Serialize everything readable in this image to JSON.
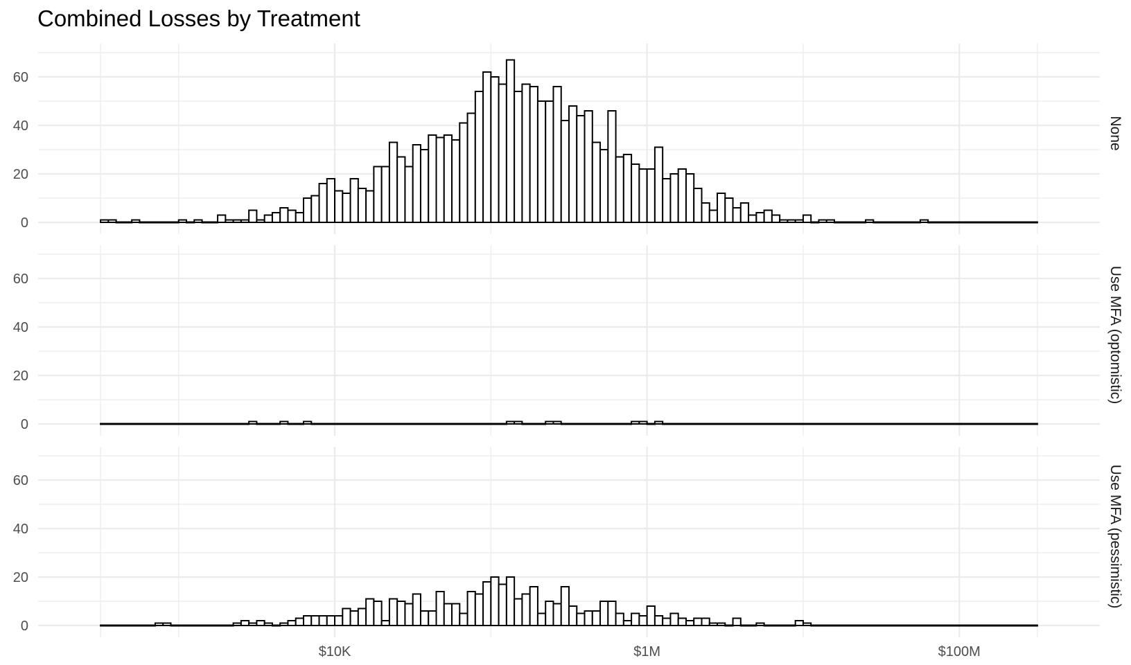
{
  "chart_data": {
    "type": "histogram",
    "title": "Combined Losses by Treatment",
    "xlabel": "",
    "ylabel": "",
    "x_scale": "log10",
    "x_bins_log10": {
      "start": 2.5,
      "width": 0.05,
      "count": 120
    },
    "x_ticks": [
      {
        "value": 10000,
        "label": "$10K"
      },
      {
        "value": 1000000,
        "label": "$1M"
      },
      {
        "value": 100000000,
        "label": "$100M"
      }
    ],
    "y_ticks": [
      "0",
      "20",
      "40",
      "60"
    ],
    "ylim": [
      0,
      70
    ],
    "grid": true,
    "facets": [
      {
        "label": "None",
        "counts": [
          1,
          1,
          0,
          0,
          1,
          0,
          0,
          0,
          0,
          0,
          1,
          0,
          1,
          0,
          0,
          3,
          1,
          1,
          1,
          5,
          1,
          3,
          4,
          6,
          5,
          4,
          10,
          11,
          16,
          18,
          13,
          12,
          18,
          14,
          13,
          23,
          23,
          33,
          27,
          23,
          32,
          30,
          36,
          35,
          36,
          34,
          41,
          45,
          54,
          62,
          60,
          57,
          67,
          54,
          57,
          56,
          50,
          50,
          56,
          42,
          48,
          44,
          46,
          33,
          30,
          46,
          27,
          28,
          24,
          22,
          22,
          31,
          18,
          20,
          22,
          20,
          14,
          8,
          5,
          12,
          10,
          6,
          8,
          3,
          4,
          5,
          3,
          1,
          1,
          1,
          3,
          0,
          1,
          1,
          0,
          0,
          0,
          0,
          1,
          0,
          0,
          0,
          0,
          0,
          0,
          1,
          0,
          0,
          0,
          0,
          0,
          0,
          0,
          0,
          0,
          0,
          0,
          0,
          0,
          0
        ]
      },
      {
        "label": "Use MFA (optomistic)",
        "counts": [
          0,
          0,
          0,
          0,
          0,
          0,
          0,
          0,
          0,
          0,
          0,
          0,
          0,
          0,
          0,
          0,
          0,
          0,
          0,
          1,
          0,
          0,
          0,
          1,
          0,
          0,
          1,
          0,
          0,
          0,
          0,
          0,
          0,
          0,
          0,
          0,
          0,
          0,
          0,
          0,
          0,
          0,
          0,
          0,
          0,
          0,
          0,
          0,
          0,
          0,
          0,
          0,
          1,
          1,
          0,
          0,
          0,
          1,
          1,
          0,
          0,
          0,
          0,
          0,
          0,
          0,
          0,
          0,
          1,
          1,
          0,
          1,
          0,
          0,
          0,
          0,
          0,
          0,
          0,
          0,
          0,
          0,
          0,
          0,
          0,
          0,
          0,
          0,
          0,
          0,
          0,
          0,
          0,
          0,
          0,
          0,
          0,
          0,
          0,
          0,
          0,
          0,
          0,
          0,
          0,
          0,
          0,
          0,
          0,
          0,
          0,
          0,
          0,
          0,
          0,
          0,
          0,
          0,
          0,
          0
        ]
      },
      {
        "label": "Use MFA (pessimistic)",
        "counts": [
          0,
          0,
          0,
          0,
          0,
          0,
          0,
          1,
          1,
          0,
          0,
          0,
          0,
          0,
          0,
          0,
          0,
          1,
          2,
          1,
          2,
          1,
          0,
          1,
          2,
          3,
          4,
          4,
          4,
          4,
          4,
          7,
          6,
          7,
          11,
          10,
          2,
          11,
          10,
          9,
          13,
          6,
          6,
          14,
          9,
          9,
          5,
          14,
          13,
          18,
          20,
          17,
          20,
          11,
          13,
          16,
          5,
          10,
          9,
          16,
          8,
          5,
          6,
          6,
          10,
          10,
          5,
          2,
          5,
          4,
          8,
          4,
          3,
          5,
          3,
          2,
          3,
          3,
          1,
          1,
          0,
          3,
          0,
          0,
          1,
          0,
          0,
          0,
          0,
          2,
          1,
          0,
          0,
          0,
          0,
          0,
          0,
          0,
          0,
          0,
          0,
          0,
          0,
          0,
          0,
          0,
          0,
          0,
          0,
          0,
          0,
          0,
          0,
          0,
          0,
          0,
          0,
          0,
          0,
          0
        ]
      }
    ]
  }
}
